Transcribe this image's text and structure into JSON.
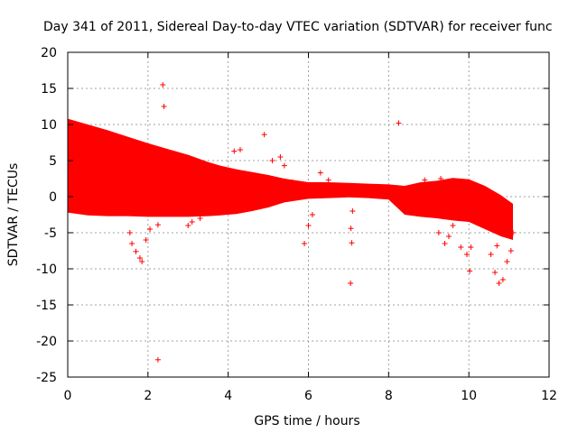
{
  "chart_data": {
    "type": "scatter",
    "title": "Day 341 of 2011, Sidereal Day-to-day VTEC variation (SDTVAR) for receiver func",
    "xlabel": "GPS time / hours",
    "ylabel": "SDTVAR / TECUs",
    "xlim": [
      0,
      12
    ],
    "ylim": [
      -25,
      20
    ],
    "grid": true,
    "marker": "+",
    "color": "#ff0000",
    "x_ticks": [
      0,
      2,
      4,
      6,
      8,
      10,
      12
    ],
    "y_ticks": [
      -25,
      -20,
      -15,
      -10,
      -5,
      0,
      5,
      10,
      15,
      20
    ],
    "series": [
      {
        "name": "SDTVAR",
        "dense_band": {
          "x": [
            0,
            0.5,
            1,
            1.5,
            2,
            2.5,
            3,
            3.5,
            3.8,
            4.2,
            4.6,
            5,
            5.4,
            6,
            6.5,
            7,
            7.5,
            8,
            8.4,
            8.8,
            9.2,
            9.6,
            10,
            10.4,
            10.8,
            11.1
          ],
          "upper": [
            10.8,
            10.0,
            9.2,
            8.3,
            7.4,
            6.6,
            5.8,
            4.8,
            4.3,
            3.8,
            3.4,
            3.0,
            2.5,
            2.0,
            2.0,
            1.9,
            1.8,
            1.7,
            1.5,
            2.0,
            2.2,
            2.6,
            2.4,
            1.5,
            0.2,
            -1.0
          ],
          "lower": [
            -2.2,
            -2.6,
            -2.7,
            -2.7,
            -2.8,
            -2.8,
            -2.8,
            -2.7,
            -2.6,
            -2.4,
            -2.0,
            -1.5,
            -0.8,
            -0.3,
            -0.2,
            -0.1,
            -0.2,
            -0.4,
            -2.5,
            -2.8,
            -3.0,
            -3.3,
            -3.5,
            -4.5,
            -5.5,
            -6.0
          ]
        },
        "points": [
          {
            "x": 2.37,
            "y": 15.5
          },
          {
            "x": 2.4,
            "y": 12.5
          },
          {
            "x": 4.9,
            "y": 8.6
          },
          {
            "x": 8.25,
            "y": 10.2
          },
          {
            "x": 2.25,
            "y": -22.6
          },
          {
            "x": 7.05,
            "y": -12.0
          },
          {
            "x": 7.08,
            "y": -6.4
          },
          {
            "x": 7.06,
            "y": -4.4
          },
          {
            "x": 7.1,
            "y": -2.0
          },
          {
            "x": 10.02,
            "y": -10.3
          },
          {
            "x": 10.7,
            "y": -6.8
          },
          {
            "x": 2.25,
            "y": -3.9
          },
          {
            "x": 4.3,
            "y": 6.5
          },
          {
            "x": 4.15,
            "y": 6.3
          },
          {
            "x": 5.1,
            "y": 5.0
          },
          {
            "x": 5.3,
            "y": 5.5
          },
          {
            "x": 5.4,
            "y": 4.3
          },
          {
            "x": 5.6,
            "y": 2.0
          },
          {
            "x": 6.3,
            "y": 3.3
          },
          {
            "x": 6.5,
            "y": 2.3
          },
          {
            "x": 6.0,
            "y": -4.0
          },
          {
            "x": 5.9,
            "y": -6.5
          },
          {
            "x": 6.1,
            "y": -2.5
          },
          {
            "x": 1.55,
            "y": -5.0
          },
          {
            "x": 1.6,
            "y": -6.5
          },
          {
            "x": 1.7,
            "y": -7.6
          },
          {
            "x": 1.8,
            "y": -8.5
          },
          {
            "x": 1.85,
            "y": -9.0
          },
          {
            "x": 1.95,
            "y": -6.0
          },
          {
            "x": 2.05,
            "y": -4.5
          },
          {
            "x": 3.0,
            "y": -4.0
          },
          {
            "x": 3.1,
            "y": -3.5
          },
          {
            "x": 3.3,
            "y": -3.0
          },
          {
            "x": 9.4,
            "y": -6.5
          },
          {
            "x": 9.5,
            "y": -5.5
          },
          {
            "x": 9.6,
            "y": -4.0
          },
          {
            "x": 9.8,
            "y": -7.0
          },
          {
            "x": 9.95,
            "y": -8.0
          },
          {
            "x": 10.05,
            "y": -7.0
          },
          {
            "x": 9.25,
            "y": -5.0
          },
          {
            "x": 10.55,
            "y": -8.0
          },
          {
            "x": 10.65,
            "y": -10.5
          },
          {
            "x": 10.75,
            "y": -12.0
          },
          {
            "x": 10.85,
            "y": -11.5
          },
          {
            "x": 10.95,
            "y": -9.0
          },
          {
            "x": 11.05,
            "y": -7.5
          },
          {
            "x": 11.1,
            "y": -5.0
          },
          {
            "x": 8.6,
            "y": 0.8
          },
          {
            "x": 8.9,
            "y": 2.3
          },
          {
            "x": 9.3,
            "y": 2.5
          },
          {
            "x": 9.7,
            "y": 1.5
          },
          {
            "x": 10.3,
            "y": 0.5
          }
        ]
      }
    ]
  }
}
